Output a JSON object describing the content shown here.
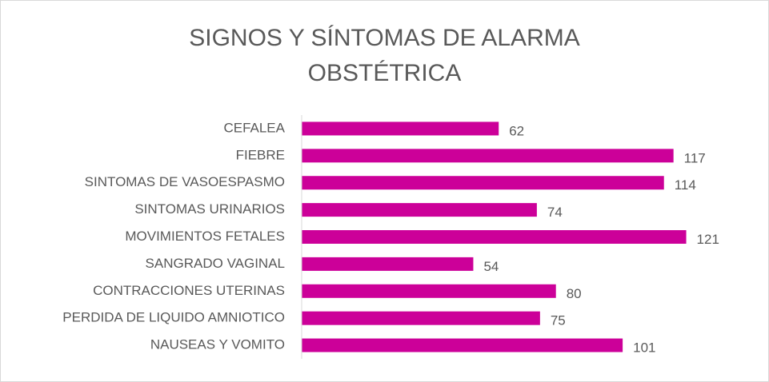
{
  "chart_data": {
    "type": "bar",
    "orientation": "horizontal",
    "title": "SIGNOS Y SÍNTOMAS DE ALARMA OBSTÉTRICA",
    "categories": [
      "CEFALEA",
      "FIEBRE",
      "SINTOMAS DE VASOESPASMO",
      "SINTOMAS URINARIOS",
      "MOVIMIENTOS FETALES",
      "SANGRADO VAGINAL",
      "CONTRACCIONES UTERINAS",
      "PERDIDA DE LIQUIDO AMNIOTICO",
      "NAUSEAS Y VOMITO"
    ],
    "values": [
      62,
      117,
      114,
      74,
      121,
      54,
      80,
      75,
      101
    ],
    "color": "#cc0099",
    "xlim": [
      0,
      140
    ]
  }
}
